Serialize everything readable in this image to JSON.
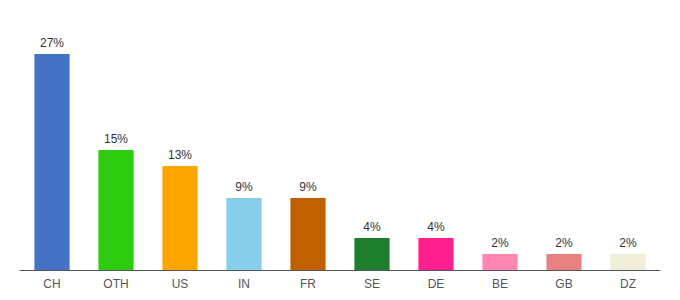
{
  "chart_data": {
    "type": "bar",
    "categories": [
      "CH",
      "OTH",
      "US",
      "IN",
      "FR",
      "SE",
      "DE",
      "BE",
      "GB",
      "DZ"
    ],
    "values": [
      27,
      15,
      13,
      9,
      9,
      4,
      4,
      2,
      2,
      2
    ],
    "value_labels": [
      "27%",
      "15%",
      "13%",
      "9%",
      "9%",
      "4%",
      "4%",
      "2%",
      "2%",
      "2%"
    ],
    "colors": [
      "#4472C4",
      "#2ECC11",
      "#FFA500",
      "#87CEEB",
      "#C06000",
      "#1E7D2E",
      "#FF1F8F",
      "#FF85B3",
      "#E88080",
      "#F0EDD8"
    ],
    "ylim": [
      0,
      30
    ],
    "grid": false,
    "data_labels": true,
    "tick_labels": "x"
  }
}
